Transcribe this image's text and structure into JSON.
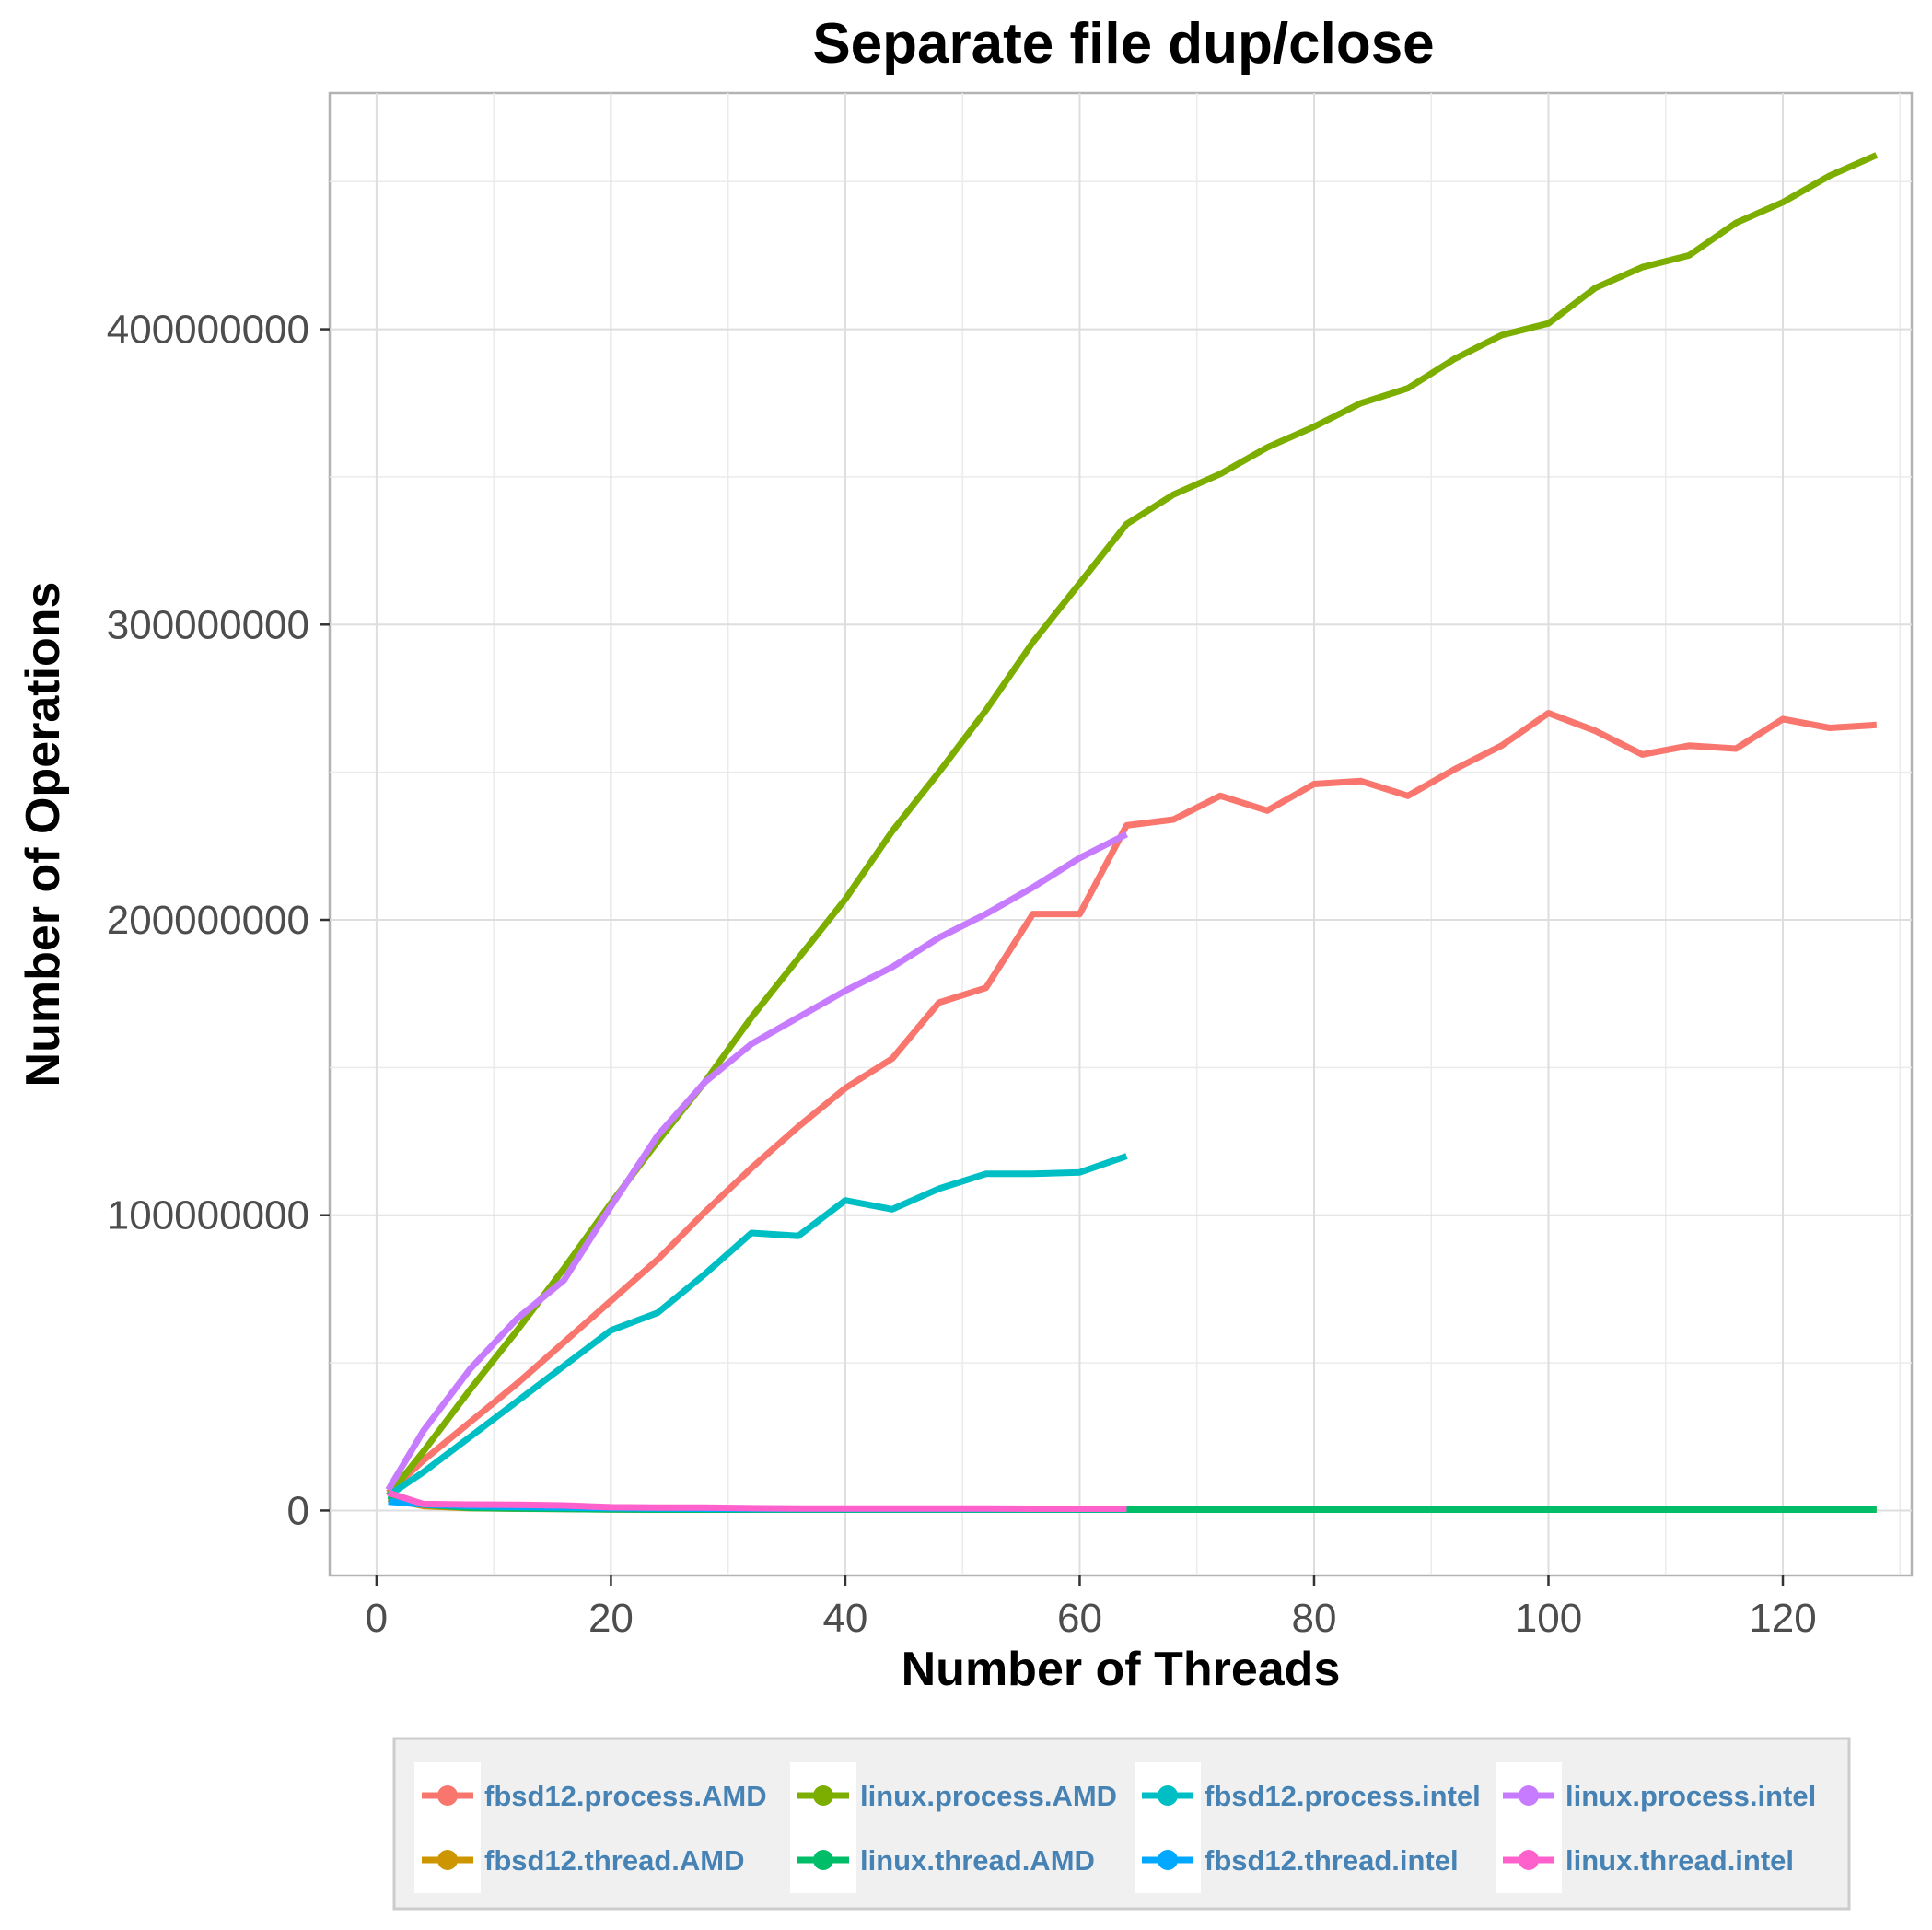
{
  "chart_data": {
    "type": "line",
    "title": "Separate file dup/close",
    "xlabel": "Number of Threads",
    "ylabel": "Number of Operations",
    "xlim": [
      -4,
      131
    ],
    "ylim": [
      -22000000,
      480000000
    ],
    "x_ticks": [
      0,
      20,
      40,
      60,
      80,
      100,
      120
    ],
    "x_tick_labels": [
      "0",
      "20",
      "40",
      "60",
      "80",
      "100",
      "120"
    ],
    "y_ticks": [
      0,
      100000000,
      200000000,
      300000000,
      400000000
    ],
    "y_tick_labels": [
      "0",
      "100000000",
      "200000000",
      "300000000",
      "400000000"
    ],
    "grid": true,
    "legend_position": "bottom",
    "series": [
      {
        "name": "fbsd12.process.AMD",
        "color": "#F8766D",
        "x": [
          1,
          4,
          8,
          12,
          16,
          20,
          24,
          28,
          32,
          36,
          40,
          44,
          48,
          52,
          56,
          60,
          64,
          68,
          72,
          76,
          80,
          84,
          88,
          92,
          96,
          100,
          104,
          108,
          112,
          116,
          120,
          124,
          128
        ],
        "y": [
          6000000,
          17000000,
          30000000,
          43000000,
          57000000,
          71000000,
          85000000,
          101000000,
          116000000,
          130000000,
          143000000,
          153000000,
          172000000,
          177000000,
          202000000,
          202000000,
          232000000,
          234000000,
          242000000,
          237000000,
          246000000,
          247000000,
          242000000,
          251000000,
          259000000,
          270000000,
          264000000,
          256000000,
          259000000,
          258000000,
          268000000,
          265000000,
          266000000
        ]
      },
      {
        "name": "linux.process.AMD",
        "color": "#7CAE00",
        "x": [
          1,
          4,
          8,
          12,
          16,
          20,
          24,
          28,
          32,
          36,
          40,
          44,
          48,
          52,
          56,
          60,
          64,
          68,
          72,
          76,
          80,
          84,
          88,
          92,
          96,
          100,
          104,
          108,
          112,
          116,
          120,
          124,
          128
        ],
        "y": [
          5000000,
          20000000,
          41000000,
          61000000,
          82000000,
          104000000,
          125000000,
          145000000,
          167000000,
          187000000,
          207000000,
          230000000,
          250000000,
          271000000,
          294000000,
          314000000,
          334000000,
          344000000,
          351000000,
          360000000,
          367000000,
          375000000,
          380000000,
          390000000,
          398000000,
          402000000,
          414000000,
          421000000,
          425000000,
          436000000,
          443000000,
          452000000,
          459000000
        ]
      },
      {
        "name": "fbsd12.process.intel",
        "color": "#00BFC4",
        "x": [
          1,
          4,
          8,
          12,
          16,
          20,
          24,
          28,
          32,
          36,
          40,
          44,
          48,
          52,
          56,
          60,
          64
        ],
        "y": [
          5000000,
          13000000,
          25000000,
          37000000,
          49000000,
          61000000,
          67000000,
          80000000,
          94000000,
          93000000,
          105000000,
          102000000,
          109000000,
          114000000,
          114000000,
          114500000,
          120000000
        ]
      },
      {
        "name": "linux.process.intel",
        "color": "#C77CFF",
        "x": [
          1,
          4,
          8,
          12,
          16,
          20,
          24,
          28,
          32,
          36,
          40,
          44,
          48,
          52,
          56,
          60,
          64
        ],
        "y": [
          7000000,
          27000000,
          48000000,
          65000000,
          78000000,
          103000000,
          127000000,
          145000000,
          158000000,
          167000000,
          176000000,
          184000000,
          194000000,
          202000000,
          211000000,
          221000000,
          229000000
        ]
      },
      {
        "name": "fbsd12.thread.AMD",
        "color": "#CD9600",
        "x": [
          1,
          4,
          8,
          12,
          16,
          20,
          24,
          28,
          32,
          36,
          40,
          44,
          48,
          52,
          56,
          60,
          64,
          68,
          72,
          76,
          80,
          84,
          88,
          92,
          96,
          100,
          104,
          108,
          112,
          116,
          120,
          124,
          128
        ],
        "y": [
          4000000,
          1500000,
          800000,
          600000,
          500000,
          400000,
          300000,
          300000,
          300000,
          300000,
          300000,
          300000,
          300000,
          300000,
          300000,
          300000,
          300000,
          300000,
          300000,
          300000,
          300000,
          300000,
          300000,
          300000,
          300000,
          300000,
          300000,
          300000,
          300000,
          300000,
          300000,
          300000,
          300000
        ]
      },
      {
        "name": "linux.thread.AMD",
        "color": "#00BE67",
        "x": [
          1,
          4,
          8,
          12,
          16,
          20,
          24,
          28,
          32,
          36,
          40,
          44,
          48,
          52,
          56,
          60,
          64,
          68,
          72,
          76,
          80,
          84,
          88,
          92,
          96,
          100,
          104,
          108,
          112,
          116,
          120,
          124,
          128
        ],
        "y": [
          5000000,
          2000000,
          900000,
          700000,
          500000,
          400000,
          300000,
          300000,
          300000,
          300000,
          300000,
          300000,
          300000,
          300000,
          300000,
          300000,
          300000,
          300000,
          300000,
          300000,
          300000,
          300000,
          300000,
          300000,
          300000,
          300000,
          300000,
          300000,
          300000,
          300000,
          300000,
          300000,
          300000
        ]
      },
      {
        "name": "fbsd12.thread.intel",
        "color": "#00A9FF",
        "x": [
          1,
          4,
          8,
          12,
          16,
          20,
          24,
          28,
          32,
          36,
          40,
          44,
          48,
          52,
          56,
          60,
          64
        ],
        "y": [
          3000000,
          2000000,
          1500000,
          1200000,
          1000000,
          800000,
          700000,
          600000,
          500000,
          500000,
          500000,
          500000,
          500000,
          500000,
          500000,
          500000,
          500000
        ]
      },
      {
        "name": "linux.thread.intel",
        "color": "#FF61CC",
        "x": [
          1,
          4,
          8,
          12,
          16,
          20,
          24,
          28,
          32,
          36,
          40,
          44,
          48,
          52,
          56,
          60,
          64
        ],
        "y": [
          6000000,
          2200000,
          2000000,
          1900000,
          1700000,
          1100000,
          1000000,
          1000000,
          800000,
          700000,
          700000,
          700000,
          700000,
          700000,
          600000,
          600000,
          600000
        ]
      }
    ]
  }
}
